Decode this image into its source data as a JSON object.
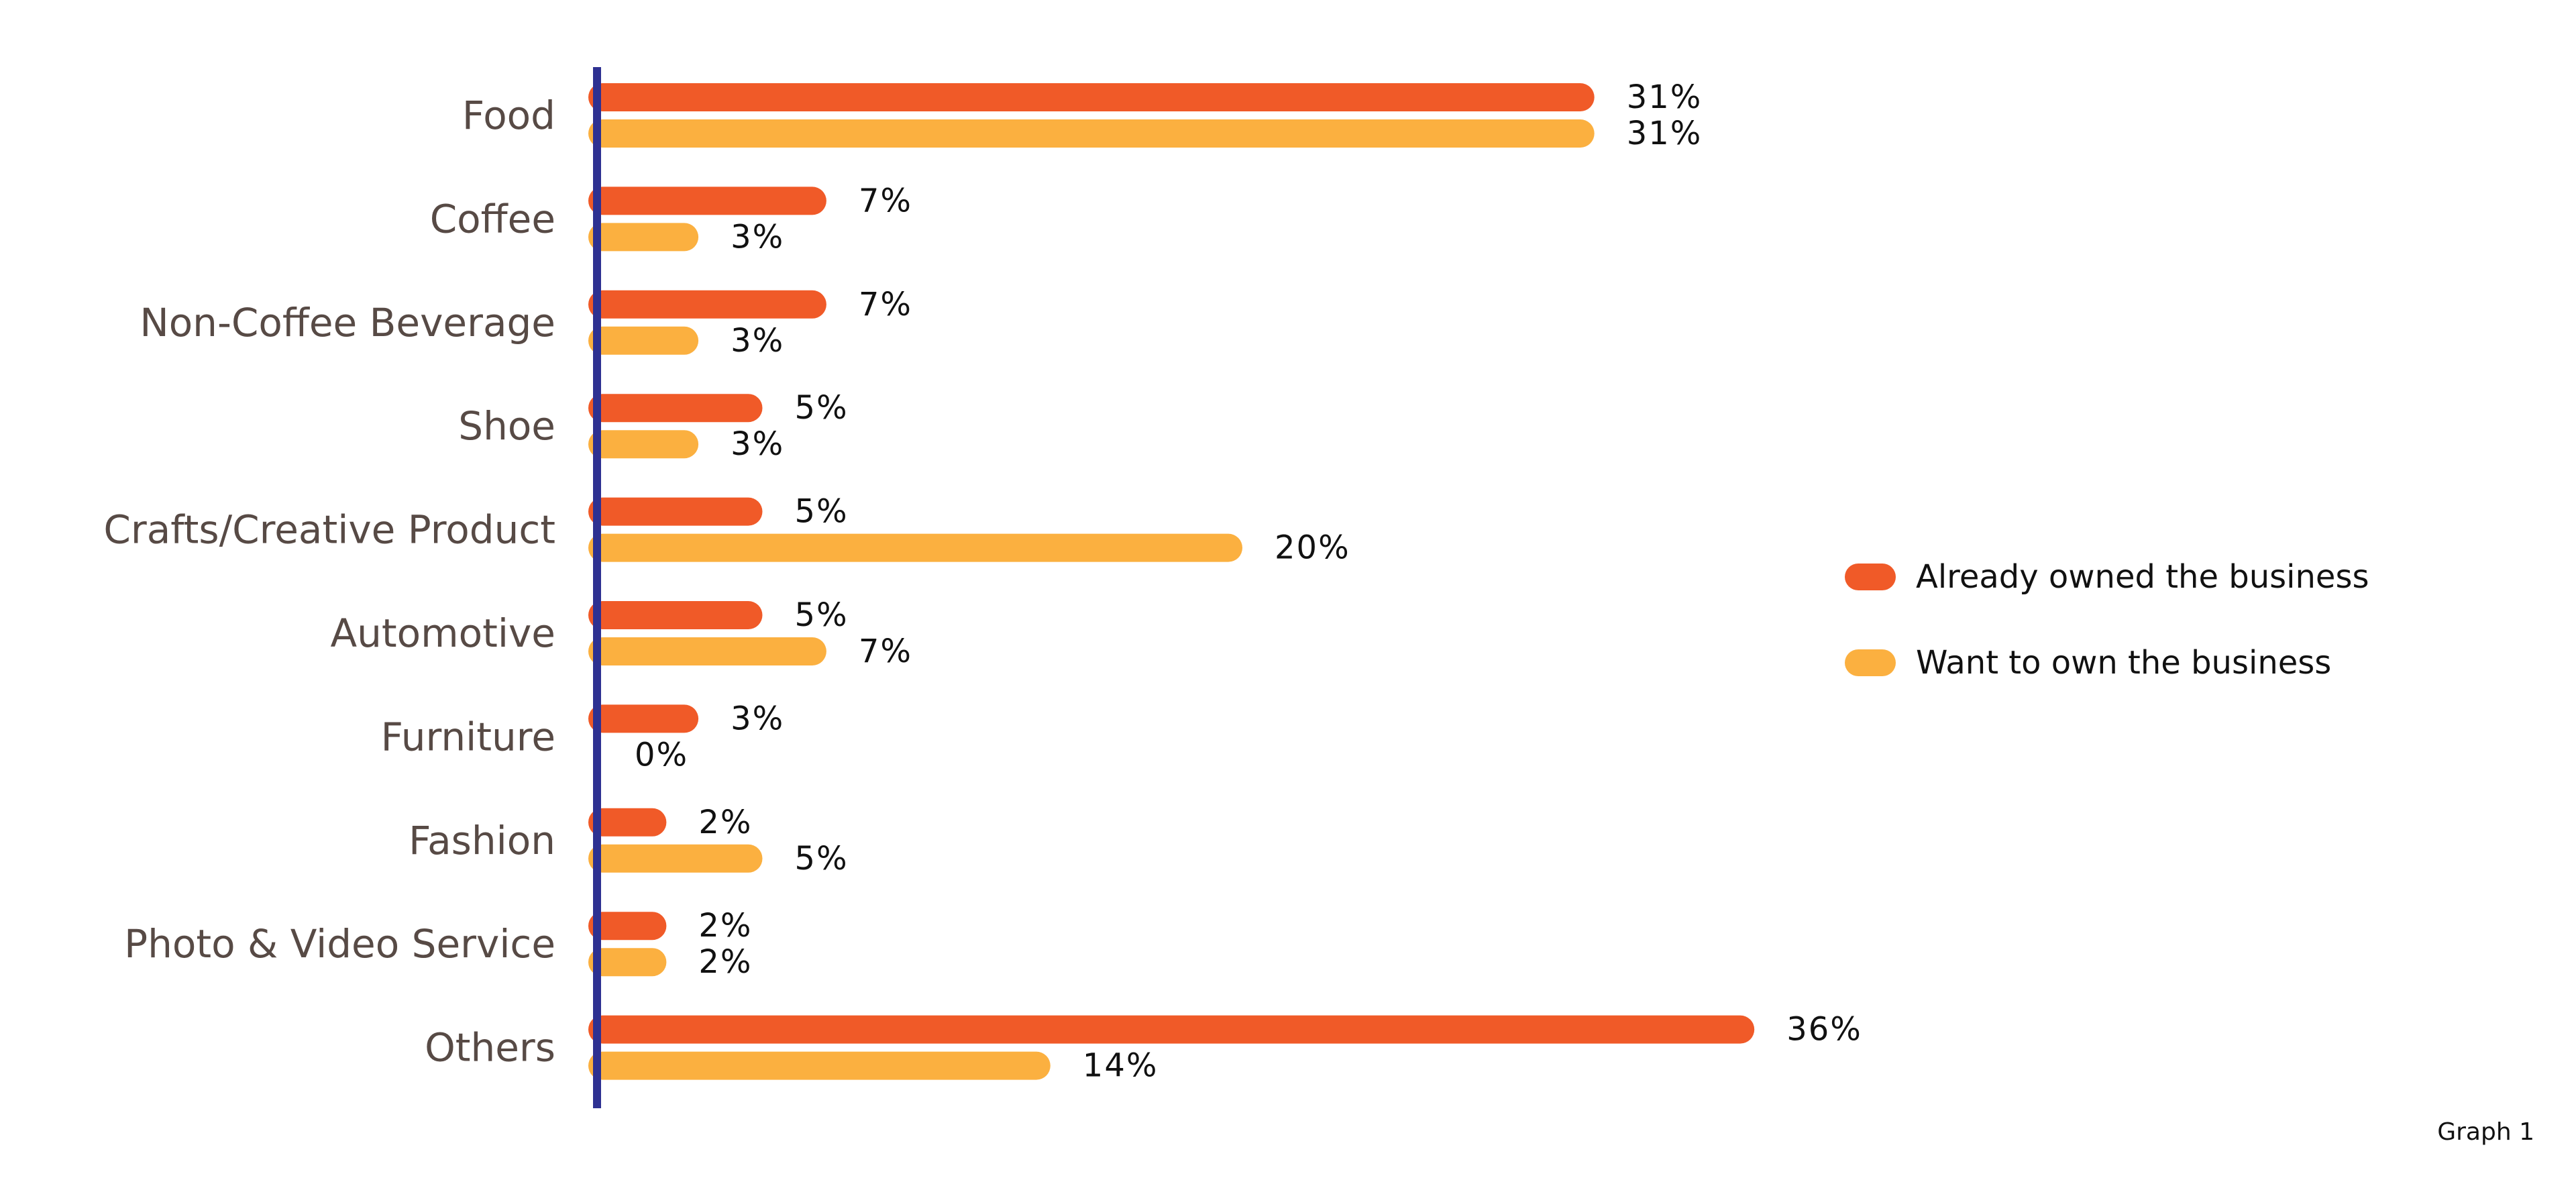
{
  "chart_data": {
    "type": "bar",
    "orientation": "horizontal",
    "categories": [
      "Food",
      "Coffee",
      "Non-Coffee Beverage",
      "Shoe",
      "Crafts/Creative Product",
      "Automotive",
      "Furniture",
      "Fashion",
      "Photo & Video Service",
      "Others"
    ],
    "series": [
      {
        "name": "Already owned the business",
        "color": "#f05a28",
        "values": [
          31,
          7,
          7,
          5,
          5,
          5,
          3,
          2,
          2,
          36
        ],
        "labels": [
          "31%",
          "7%",
          "7%",
          "5%",
          "5%",
          "5%",
          "3%",
          "2%",
          "2%",
          "36%"
        ]
      },
      {
        "name": "Want to own the business",
        "color": "#fbb040",
        "values": [
          31,
          3,
          3,
          3,
          20,
          7,
          0,
          5,
          2,
          14
        ],
        "labels": [
          "31%",
          "3%",
          "3%",
          "3%",
          "20%",
          "7%",
          "0%",
          "5%",
          "2%",
          "14%"
        ]
      }
    ],
    "axis_color": "#2e3192",
    "value_unit": "%",
    "xlim": [
      0,
      36
    ],
    "legend_position": "right",
    "grid": false
  },
  "footnote": "Graph 1"
}
